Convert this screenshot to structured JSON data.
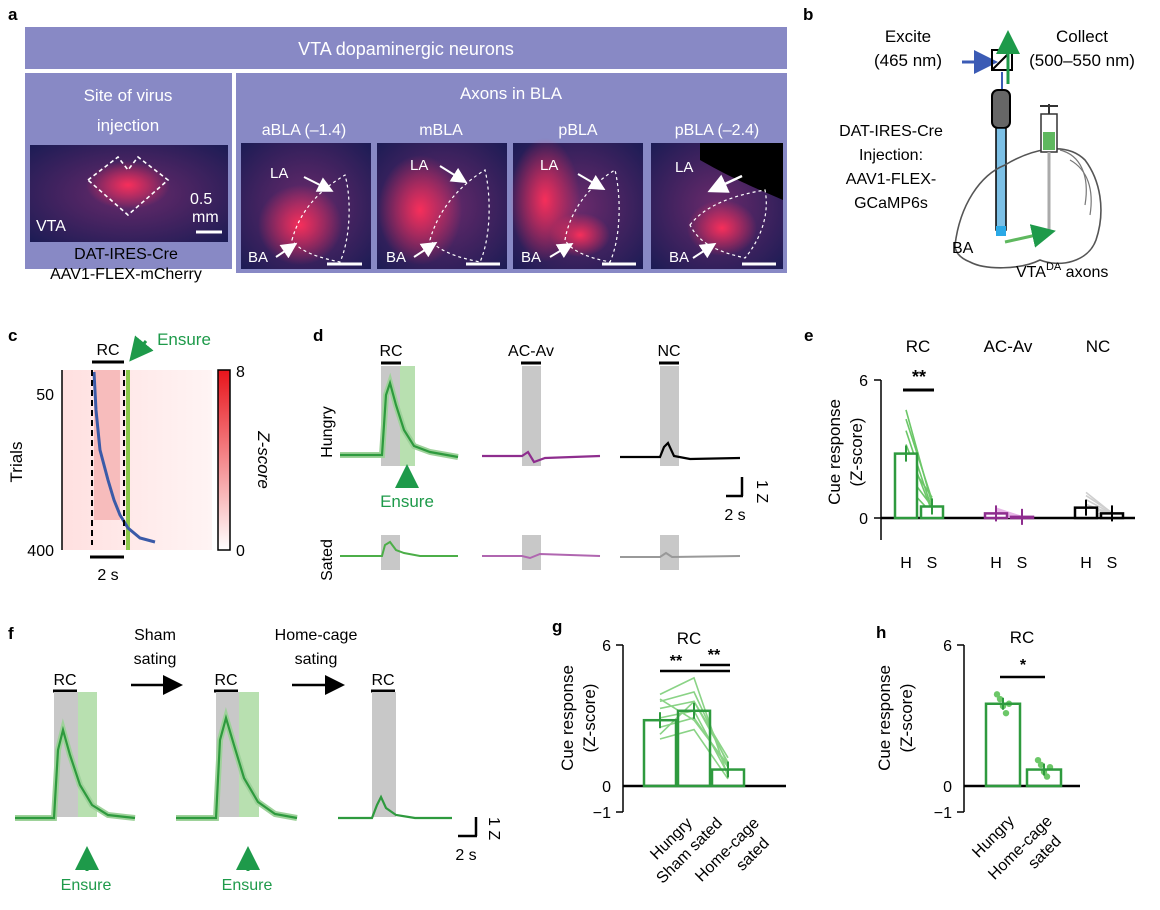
{
  "panel_labels": {
    "a": "a",
    "b": "b",
    "c": "c",
    "d": "d",
    "e": "e",
    "f": "f",
    "g": "g",
    "h": "h"
  },
  "panel_a": {
    "header": "VTA dopaminergic neurons",
    "site_title_1": "Site of virus",
    "site_title_2": "injection",
    "axons_title": "Axons in BLA",
    "vta_label": "VTA",
    "scale_1": "0.5",
    "scale_2": "mm",
    "caption_1": "DAT-IRES-Cre",
    "caption_2": "AAV1-FLEX-mCherry",
    "sections": [
      "aBLA (–1.4)",
      "mBLA",
      "pBLA",
      "pBLA (–2.4)"
    ],
    "la": "LA",
    "ba": "BA"
  },
  "panel_b": {
    "excite_1": "Excite",
    "excite_2": "(465 nm)",
    "collect_1": "Collect",
    "collect_2": "(500–550 nm)",
    "desc": [
      "DAT-IRES-Cre",
      "Injection:",
      "AAV1-FLEX-",
      "GCaMP6s"
    ],
    "ba": "BA",
    "vta_main": "VTA",
    "vta_sup": "DA",
    "vta_rest": " axons"
  },
  "panel_c": {
    "rc": "RC",
    "ensure": "Ensure",
    "ylabel": "Trials",
    "ytick_50": "50",
    "ytick_400": "400",
    "scale": "2 s",
    "cbar_max": "8",
    "cbar_min": "0",
    "cbar_label": "Z-score"
  },
  "panel_d": {
    "cues": [
      "RC",
      "AC-Av",
      "NC"
    ],
    "row_hungry": "Hungry",
    "row_sated": "Sated",
    "ensure": "Ensure",
    "scale_y": "1 Z",
    "scale_x": "2 s"
  },
  "panel_e": {
    "groups": [
      "RC",
      "AC-Av",
      "NC"
    ],
    "ylabel_1": "Cue response",
    "ylabel_2": "(Z-score)",
    "ytick_top": "6",
    "ytick_zero": "0",
    "xticks": [
      "H",
      "S"
    ],
    "sig": "**"
  },
  "panel_f": {
    "rc": "RC",
    "sham_1": "Sham",
    "sham_2": "sating",
    "home_1": "Home-cage",
    "home_2": "sating",
    "ensure": "Ensure",
    "scale_y": "1 Z",
    "scale_x": "2 s"
  },
  "panel_g": {
    "title": "RC",
    "ylabel_1": "Cue response",
    "ylabel_2": "(Z-score)",
    "yticks": [
      "6",
      "0",
      "−1"
    ],
    "xticks": [
      "Hungry",
      "Sham sated",
      "Home-cage",
      "sated"
    ],
    "sig_1": "**",
    "sig_2": "**"
  },
  "panel_h": {
    "title": "RC",
    "ylabel_1": "Cue response",
    "ylabel_2": "(Z-score)",
    "yticks": [
      "6",
      "0",
      "−1"
    ],
    "xticks": [
      "Hungry",
      "Home-cage",
      "sated"
    ],
    "sig": "*"
  },
  "chart_data": [
    {
      "type": "bar",
      "title": "RC / AC-Av / NC",
      "panel": "e",
      "ylabel": "Cue response (Z-score)",
      "ylim": [
        0,
        6
      ],
      "categories": [
        "RC H",
        "RC S",
        "AC-Av H",
        "AC-Av S",
        "NC H",
        "NC S"
      ],
      "values": [
        2.8,
        0.5,
        0.2,
        0.05,
        0.45,
        0.2
      ]
    },
    {
      "type": "bar",
      "title": "RC",
      "panel": "g",
      "ylabel": "Cue response (Z-score)",
      "ylim": [
        -1,
        6
      ],
      "categories": [
        "Hungry",
        "Sham sated",
        "Home-cage sated"
      ],
      "values": [
        2.8,
        3.2,
        0.7
      ]
    },
    {
      "type": "bar",
      "title": "RC",
      "panel": "h",
      "ylabel": "Cue response (Z-score)",
      "ylim": [
        -1,
        6
      ],
      "categories": [
        "Hungry",
        "Home-cage sated"
      ],
      "values": [
        3.5,
        0.7
      ]
    }
  ]
}
